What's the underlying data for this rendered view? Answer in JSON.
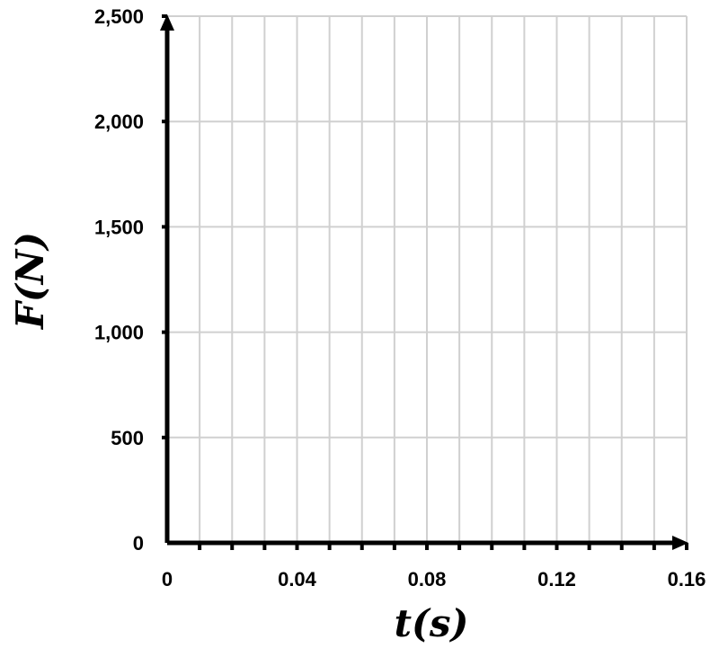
{
  "chart_data": {
    "type": "line",
    "title": "",
    "xlabel": "t(s)",
    "ylabel": "F(N)",
    "xlim": [
      0,
      0.16
    ],
    "ylim": [
      0,
      2500
    ],
    "x_ticks": [
      0,
      0.04,
      0.08,
      0.12,
      0.16
    ],
    "x_tick_labels": [
      "0",
      "0.04",
      "0.08",
      "0.12",
      "0.16"
    ],
    "y_ticks": [
      0,
      500,
      1000,
      1500,
      2000,
      2500
    ],
    "y_tick_labels": [
      "0",
      "500",
      "1,000",
      "1,500",
      "2,000",
      "2,500"
    ],
    "x_grid_step": 0.01,
    "y_grid_step": 500,
    "grid": true,
    "series": [],
    "colors": {
      "grid": "#d0d0d0",
      "axis": "#000000"
    }
  }
}
